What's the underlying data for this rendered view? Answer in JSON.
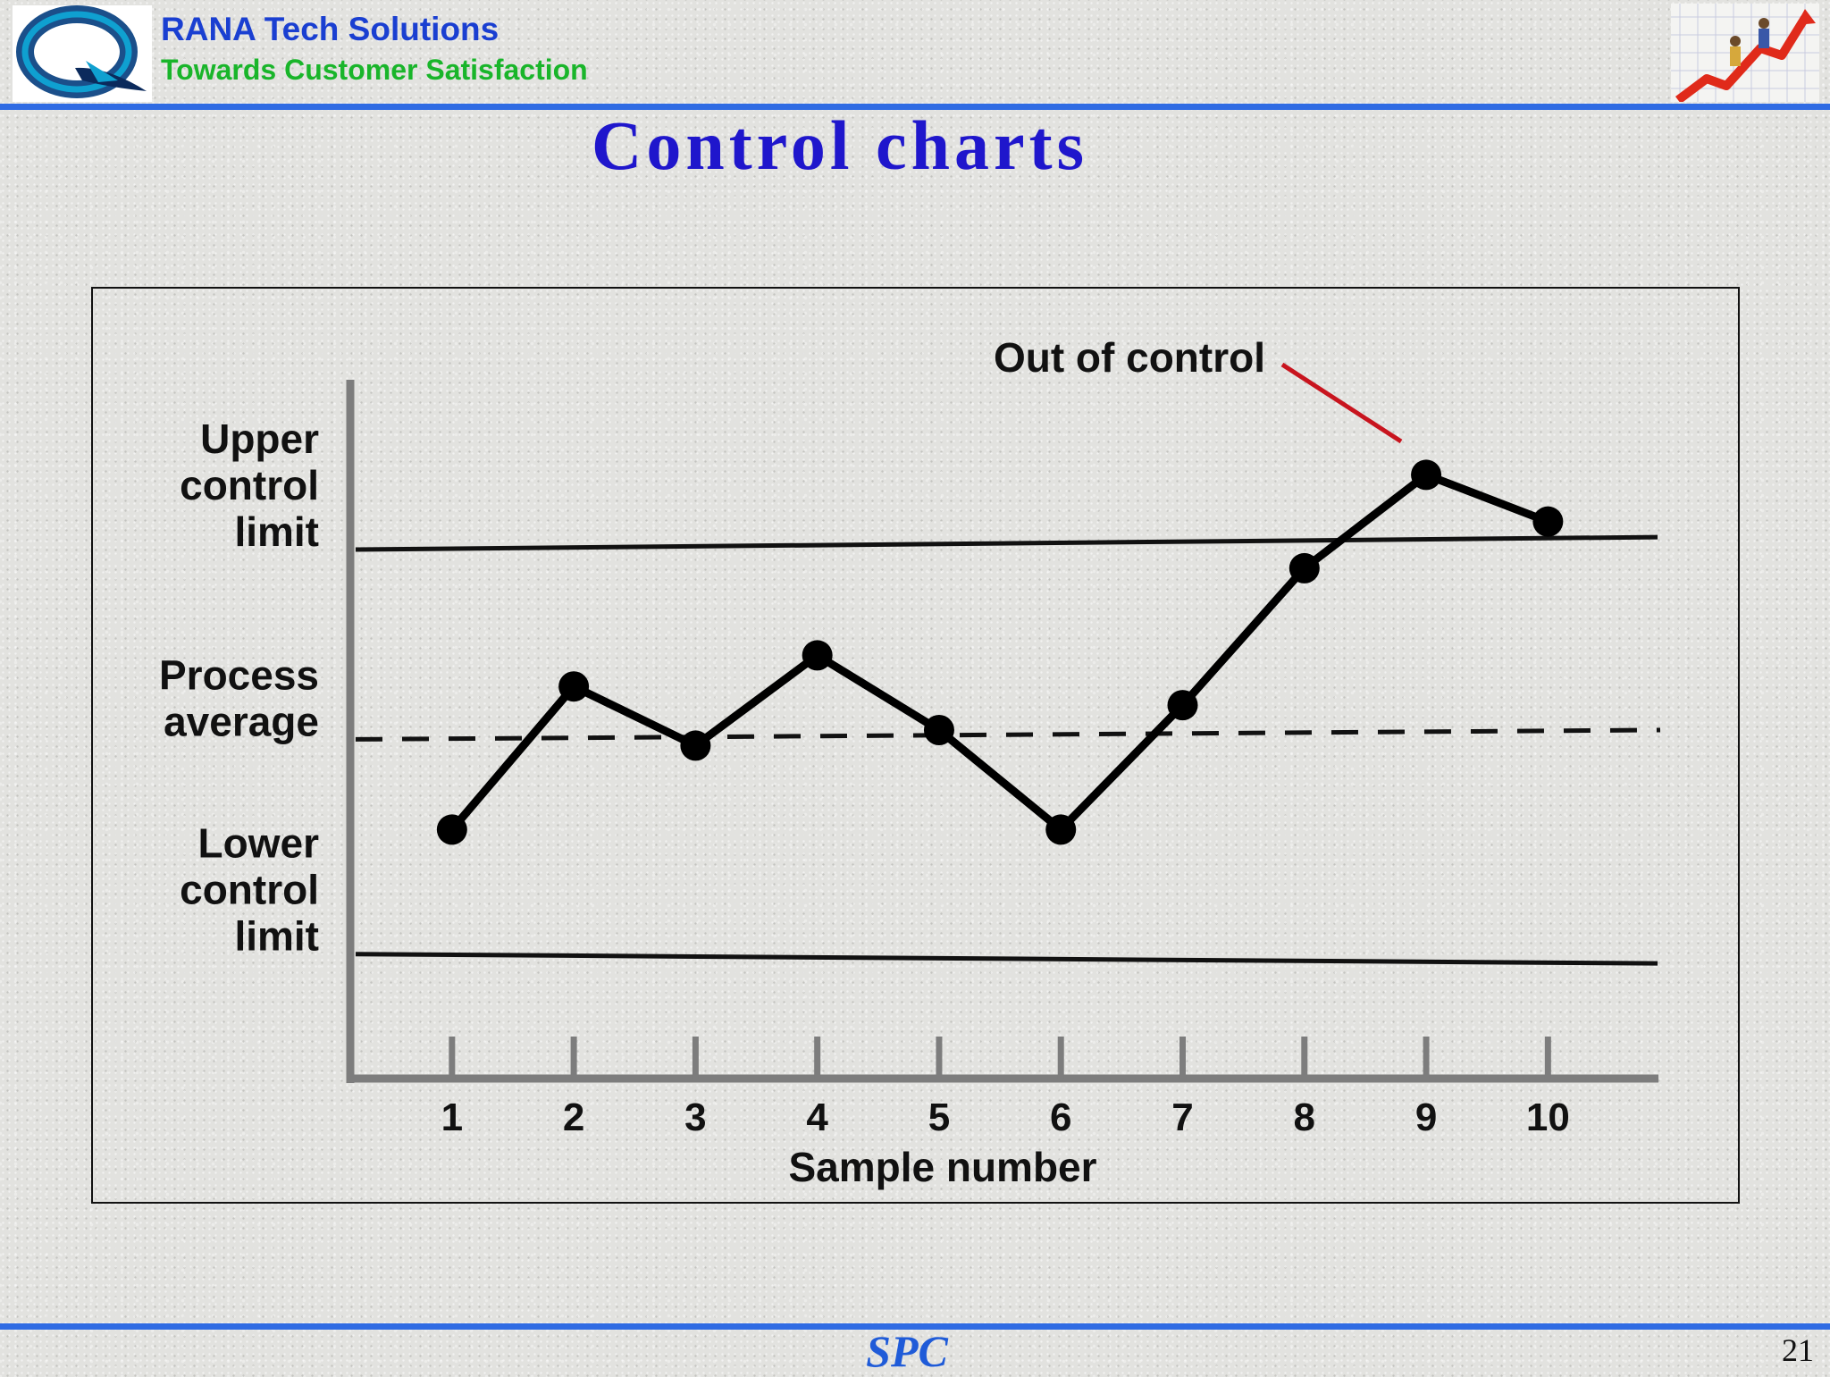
{
  "header": {
    "brand_name": "RANA Tech Solutions",
    "tagline": "Towards Customer Satisfaction",
    "logo_icon": "rana-logo-icon",
    "clipart_icon": "growth-stairs-icon"
  },
  "slide": {
    "title": "Control charts",
    "footer": "SPC",
    "page_number": "21"
  },
  "colors": {
    "header_blue": "#1a3fd1",
    "tagline_green": "#19b52a",
    "title_blue": "#1f16cc",
    "rule_blue": "#2f6be3",
    "annotation_red": "#c8141e"
  },
  "chart_data": {
    "type": "line",
    "title": "",
    "xlabel": "Sample number",
    "ylabel": "",
    "x": [
      1,
      2,
      3,
      4,
      5,
      6,
      7,
      8,
      9,
      10
    ],
    "y": [
      30,
      76,
      57,
      86,
      62,
      30,
      70,
      114,
      144,
      129
    ],
    "xlim": [
      0.15,
      10.9
    ],
    "ylim": [
      -50,
      176
    ],
    "x_tick_labels": [
      "1",
      "2",
      "3",
      "4",
      "5",
      "6",
      "7",
      "8",
      "9",
      "10"
    ],
    "reference_lines": [
      {
        "label": "Upper control limit",
        "label_lines": [
          "Upper",
          "control",
          "limit"
        ],
        "start": 120,
        "end": 124,
        "style": "solid"
      },
      {
        "label": "Process average",
        "label_lines": [
          "Process",
          "average"
        ],
        "start": 59,
        "end": 62,
        "style": "dashed"
      },
      {
        "label": "Lower control limit",
        "label_lines": [
          "Lower",
          "control",
          "limit"
        ],
        "start": -10,
        "end": -13,
        "style": "solid"
      }
    ],
    "annotation": {
      "text": "Out of control",
      "target_x": 9
    },
    "grid": false,
    "legend": "none"
  }
}
